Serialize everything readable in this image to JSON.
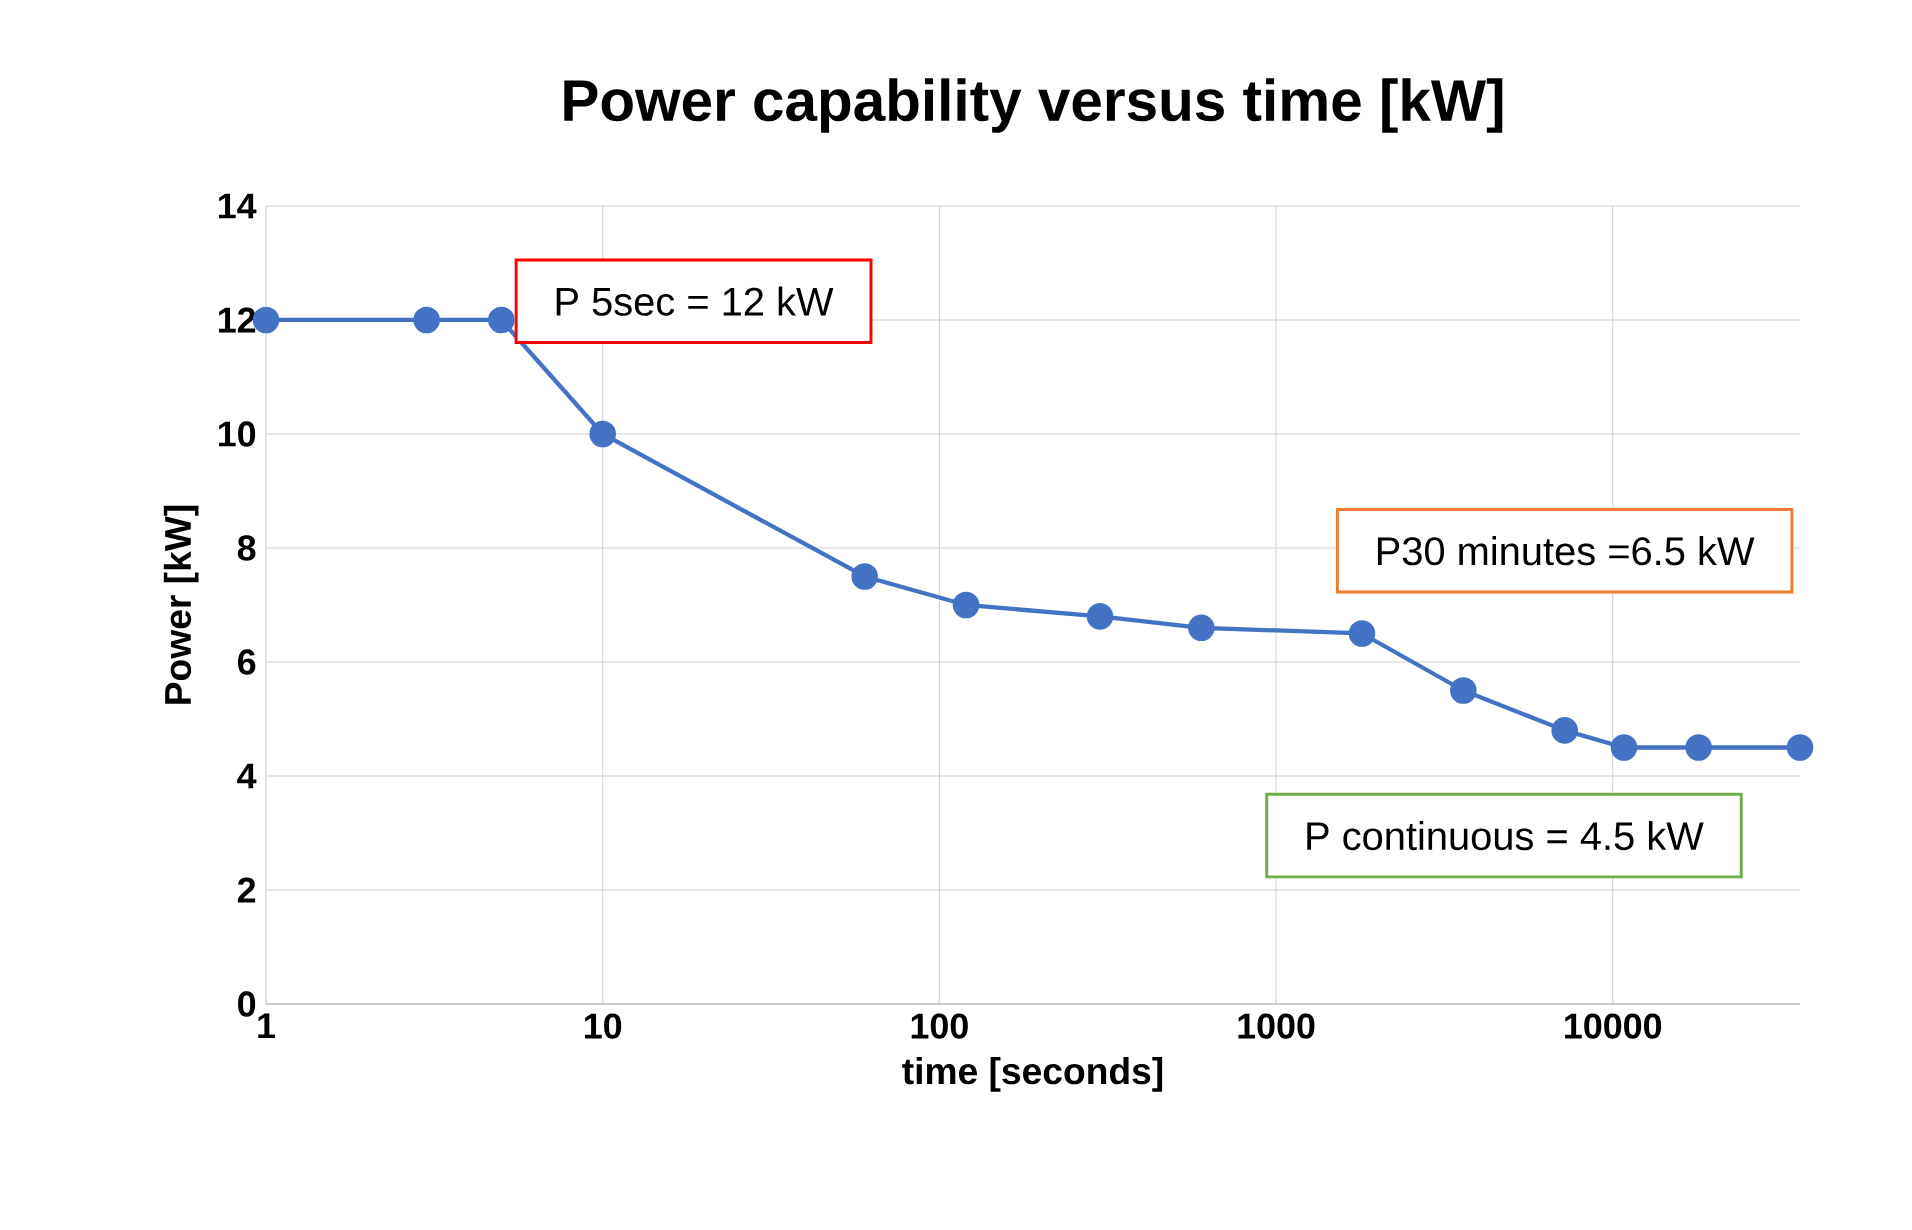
{
  "chart_data": {
    "type": "line",
    "title": "Power capability versus time [kW]",
    "xlabel": "time [seconds]",
    "ylabel": "Power [kW]",
    "x": [
      1,
      3,
      5,
      10,
      60,
      120,
      300,
      600,
      1800,
      3600,
      7200,
      10800,
      18000,
      36000
    ],
    "series": [
      {
        "color": "#4472c4",
        "values": [
          12,
          12,
          12,
          10,
          7.5,
          7,
          6.8,
          6.6,
          6.5,
          5.5,
          4.8,
          4.5,
          4.5,
          4.5
        ]
      }
    ],
    "log": "x",
    "xlim": [
      1,
      36000
    ],
    "xticks": [
      1,
      10,
      100,
      1000,
      10000
    ],
    "ylim": [
      0,
      14
    ],
    "yticks": [
      0,
      2,
      4,
      6,
      8,
      10,
      12,
      14
    ],
    "grid": true,
    "marker": "circle",
    "line_style": "solid",
    "annotations": [
      {
        "text": "P 5sec = 12 kW",
        "x": 5,
        "y": 12
      },
      {
        "text": "P30 minutes  =6.5 kW",
        "x": 1800,
        "y": 6.5
      },
      {
        "text": "P continuous = 4.5 kW",
        "x": 10800,
        "y": 4.5
      }
    ]
  }
}
